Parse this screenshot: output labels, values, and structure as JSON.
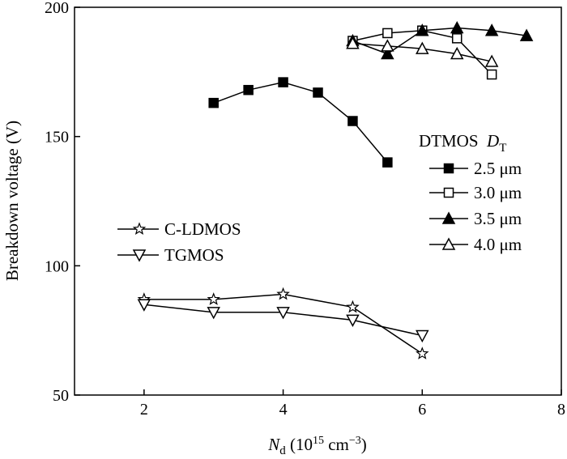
{
  "chart_data": {
    "type": "line",
    "title": "",
    "xlabel": {
      "symbol": "N",
      "subscript": "d",
      "unit_prefix": " (10",
      "unit_exp1": "15",
      "unit_mid": " cm",
      "unit_exp2": "−3",
      "unit_suffix": ")"
    },
    "ylabel": "Breakdown voltage (V)",
    "xlim": [
      1,
      8
    ],
    "ylim": [
      50,
      200
    ],
    "xticks": [
      2,
      4,
      6,
      8
    ],
    "yticks": [
      50,
      100,
      150,
      200
    ],
    "legend_dtmos_title": {
      "prefix": "DTMOS  ",
      "symbol": "D",
      "subscript": "T"
    },
    "series": [
      {
        "name": "2.5 μm",
        "marker": "square-filled",
        "x": [
          3,
          3.5,
          4,
          4.5,
          5,
          5.5
        ],
        "y": [
          163,
          168,
          171,
          167,
          156,
          140
        ]
      },
      {
        "name": "3.0 μm",
        "marker": "square-open",
        "x": [
          5,
          5.5,
          6,
          6.5,
          7
        ],
        "y": [
          187,
          190,
          191,
          188,
          174
        ]
      },
      {
        "name": "3.5 μm",
        "marker": "triangle-up-filled",
        "x": [
          5,
          5.5,
          6,
          6.5,
          7,
          7.5
        ],
        "y": [
          187,
          182,
          191,
          192,
          191,
          189
        ]
      },
      {
        "name": "4.0 μm",
        "marker": "triangle-up-open",
        "x": [
          5,
          5.5,
          6,
          6.5,
          7
        ],
        "y": [
          186,
          185,
          184,
          182,
          179
        ]
      },
      {
        "name": "C-LDMOS",
        "marker": "star-open",
        "x": [
          2,
          3,
          4,
          5,
          6
        ],
        "y": [
          87,
          87,
          89,
          84,
          66
        ]
      },
      {
        "name": "TGMOS",
        "marker": "triangle-down-open",
        "x": [
          2,
          3,
          4,
          5,
          6
        ],
        "y": [
          85,
          82,
          82,
          79,
          73
        ]
      }
    ]
  }
}
